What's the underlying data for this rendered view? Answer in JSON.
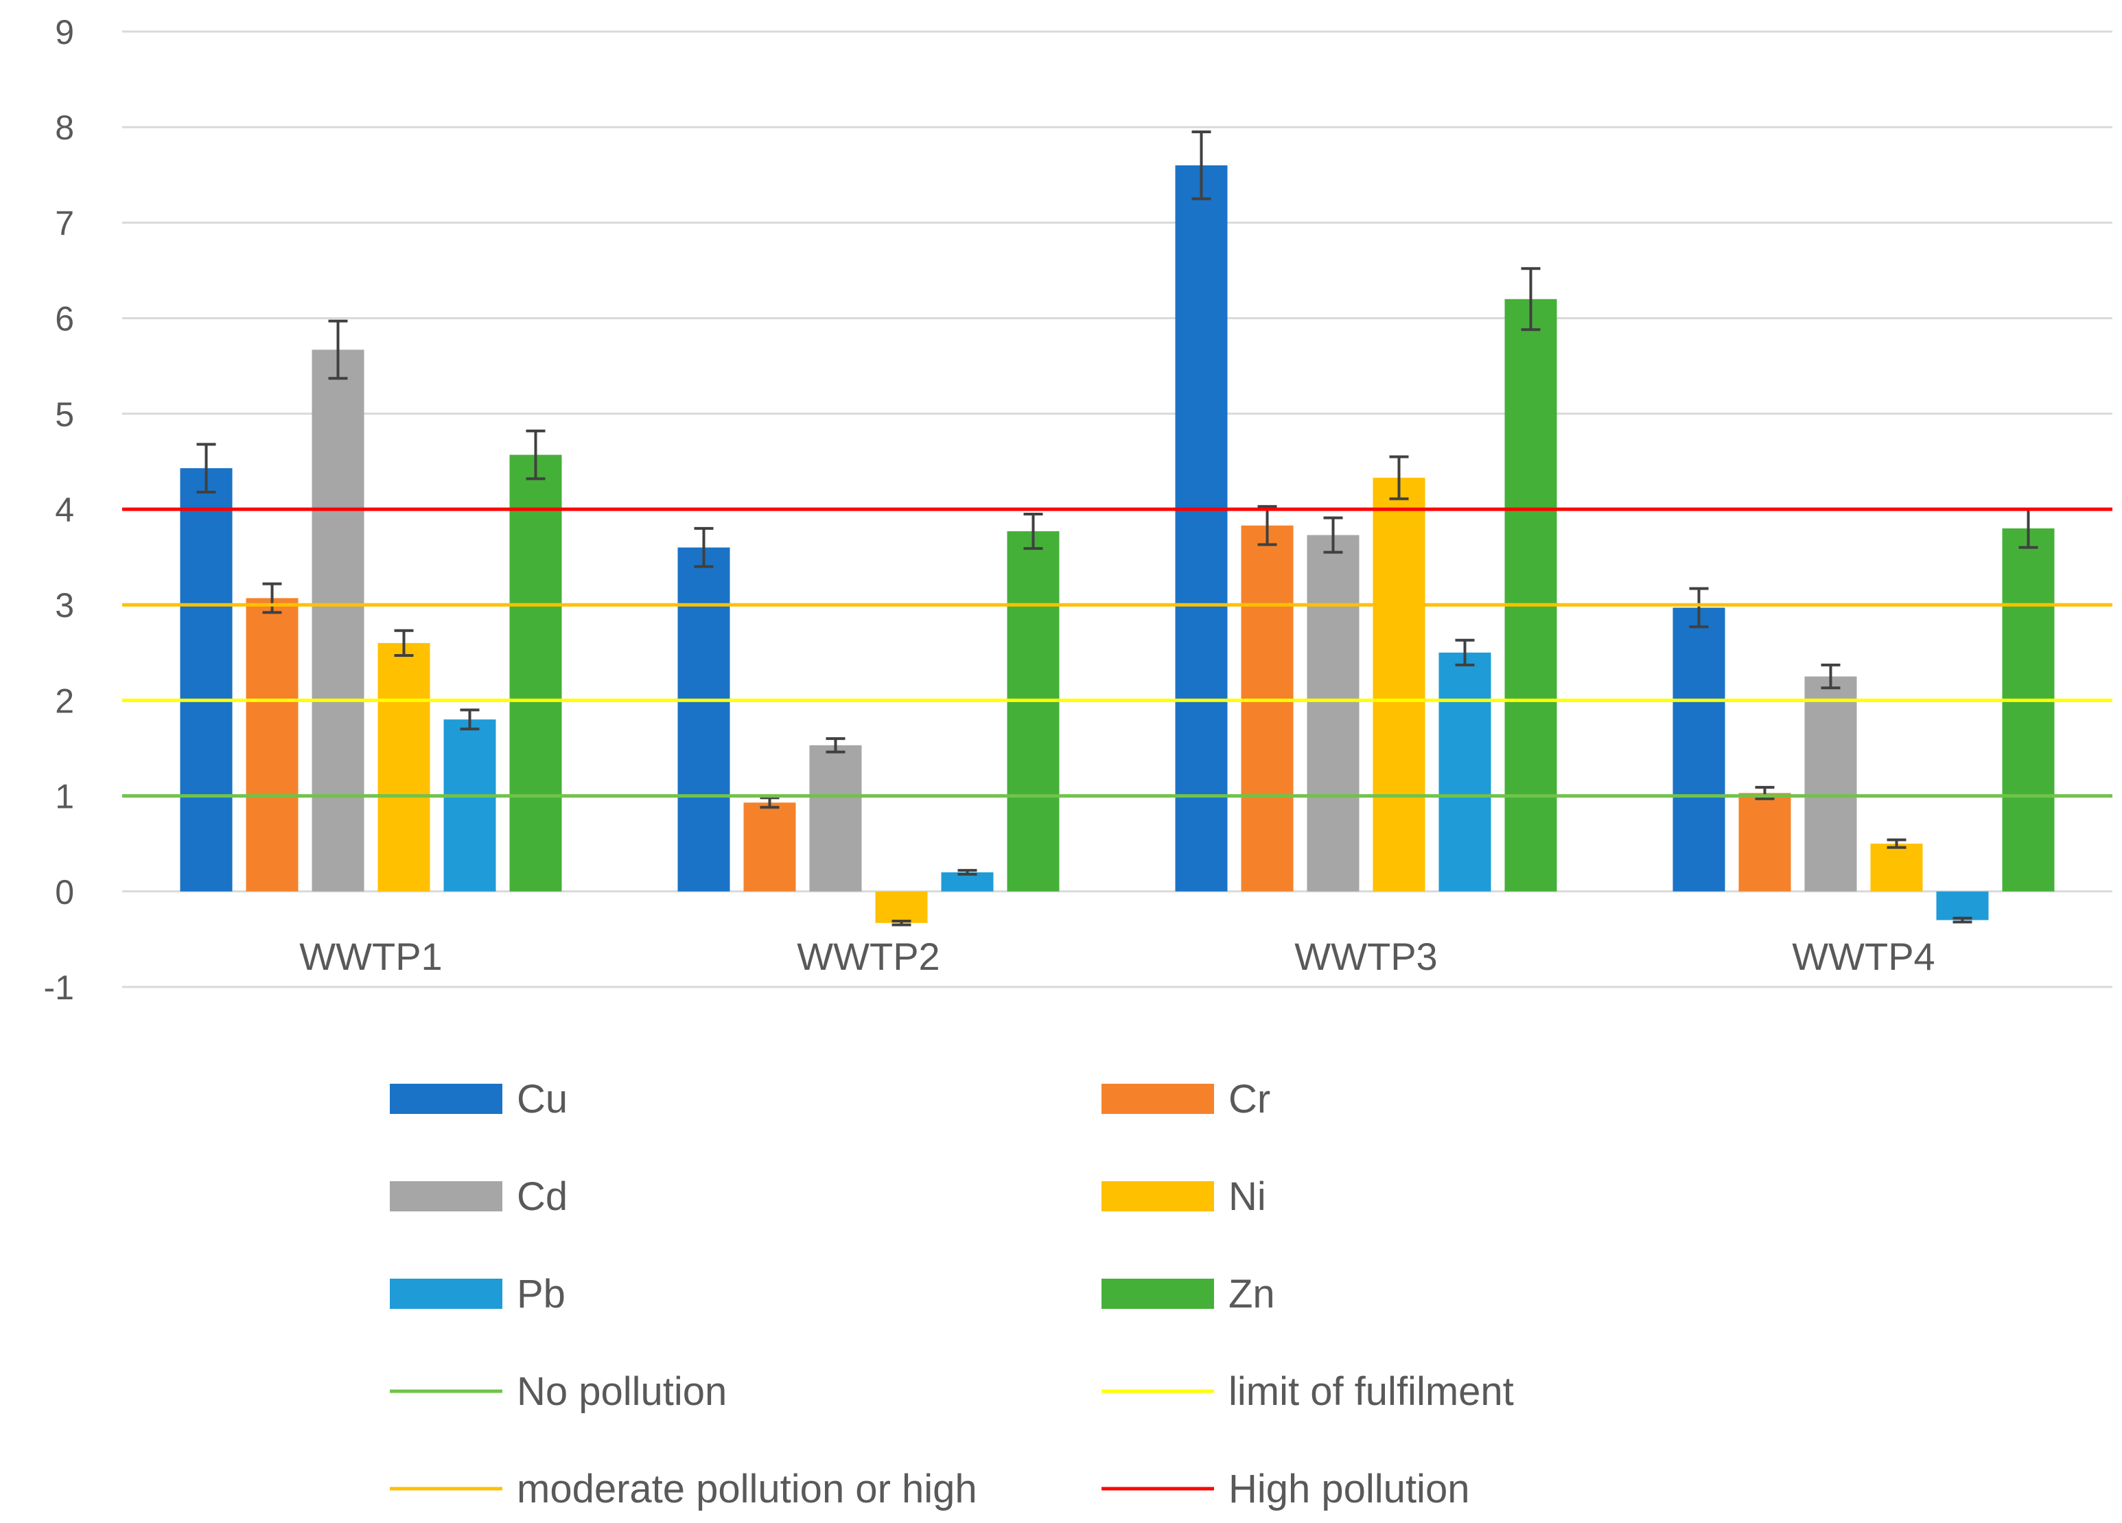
{
  "chart_data": {
    "type": "bar",
    "title": "",
    "xlabel": "",
    "ylabel": "",
    "ylim": [
      -1,
      9
    ],
    "yticks": [
      -1,
      0,
      1,
      2,
      3,
      4,
      5,
      6,
      7,
      8,
      9
    ],
    "grid": true,
    "categories": [
      "WWTP1",
      "WWTP2",
      "WWTP3",
      "WWTP4"
    ],
    "series": [
      {
        "name": "Cu",
        "color": "#1a73c6",
        "values": [
          4.43,
          3.6,
          7.6,
          2.97
        ],
        "errors": [
          0.25,
          0.2,
          0.35,
          0.2
        ]
      },
      {
        "name": "Cr",
        "color": "#f5822a",
        "values": [
          3.07,
          0.93,
          3.83,
          1.03
        ],
        "errors": [
          0.15,
          0.05,
          0.2,
          0.06
        ]
      },
      {
        "name": "Cd",
        "color": "#a6a6a6",
        "values": [
          5.67,
          1.53,
          3.73,
          2.25
        ],
        "errors": [
          0.3,
          0.07,
          0.18,
          0.12
        ]
      },
      {
        "name": "Ni",
        "color": "#ffc000",
        "values": [
          2.6,
          -0.33,
          4.33,
          0.5
        ],
        "errors": [
          0.13,
          0.02,
          0.22,
          0.04
        ]
      },
      {
        "name": "Pb",
        "color": "#1f9bd8",
        "values": [
          1.8,
          0.2,
          2.5,
          -0.3
        ],
        "errors": [
          0.1,
          0.02,
          0.13,
          0.02
        ]
      },
      {
        "name": "Zn",
        "color": "#45b038",
        "values": [
          4.57,
          3.77,
          6.2,
          3.8
        ],
        "errors": [
          0.25,
          0.18,
          0.32,
          0.2
        ]
      }
    ],
    "reference_lines": [
      {
        "name": "No pollution",
        "value": 1,
        "color": "#70c34a"
      },
      {
        "name": "limit of fulfilment",
        "value": 2,
        "color": "#ffff00"
      },
      {
        "name": "moderate pollution or high",
        "value": 3,
        "color": "#ffc000"
      },
      {
        "name": "High pollution",
        "value": 4,
        "color": "#ff0000"
      }
    ],
    "legend_position": "bottom"
  }
}
